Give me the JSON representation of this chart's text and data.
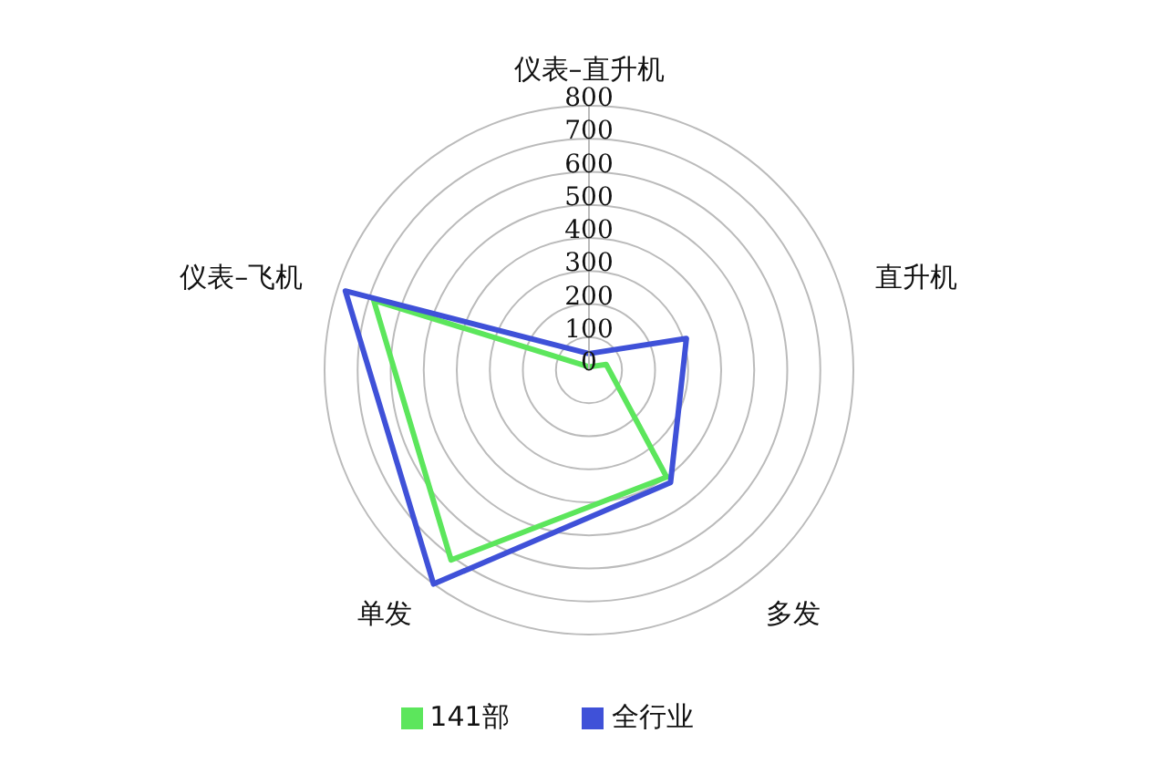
{
  "chart_data": {
    "type": "radar",
    "categories": [
      "仪表–直升机",
      "直升机",
      "多发",
      "单发",
      "仪表–飞机"
    ],
    "series": [
      {
        "name": "141部",
        "color": "#5ce65c",
        "values": [
          10,
          55,
          400,
          710,
          685
        ]
      },
      {
        "name": "全行业",
        "color": "#3f51d8",
        "values": [
          50,
          310,
          420,
          800,
          775
        ]
      }
    ],
    "ylim": [
      0,
      800
    ],
    "yticks": [
      0,
      100,
      200,
      300,
      400,
      500,
      600,
      700,
      800
    ],
    "grid": true,
    "legend": "bottom",
    "marker": "none"
  }
}
